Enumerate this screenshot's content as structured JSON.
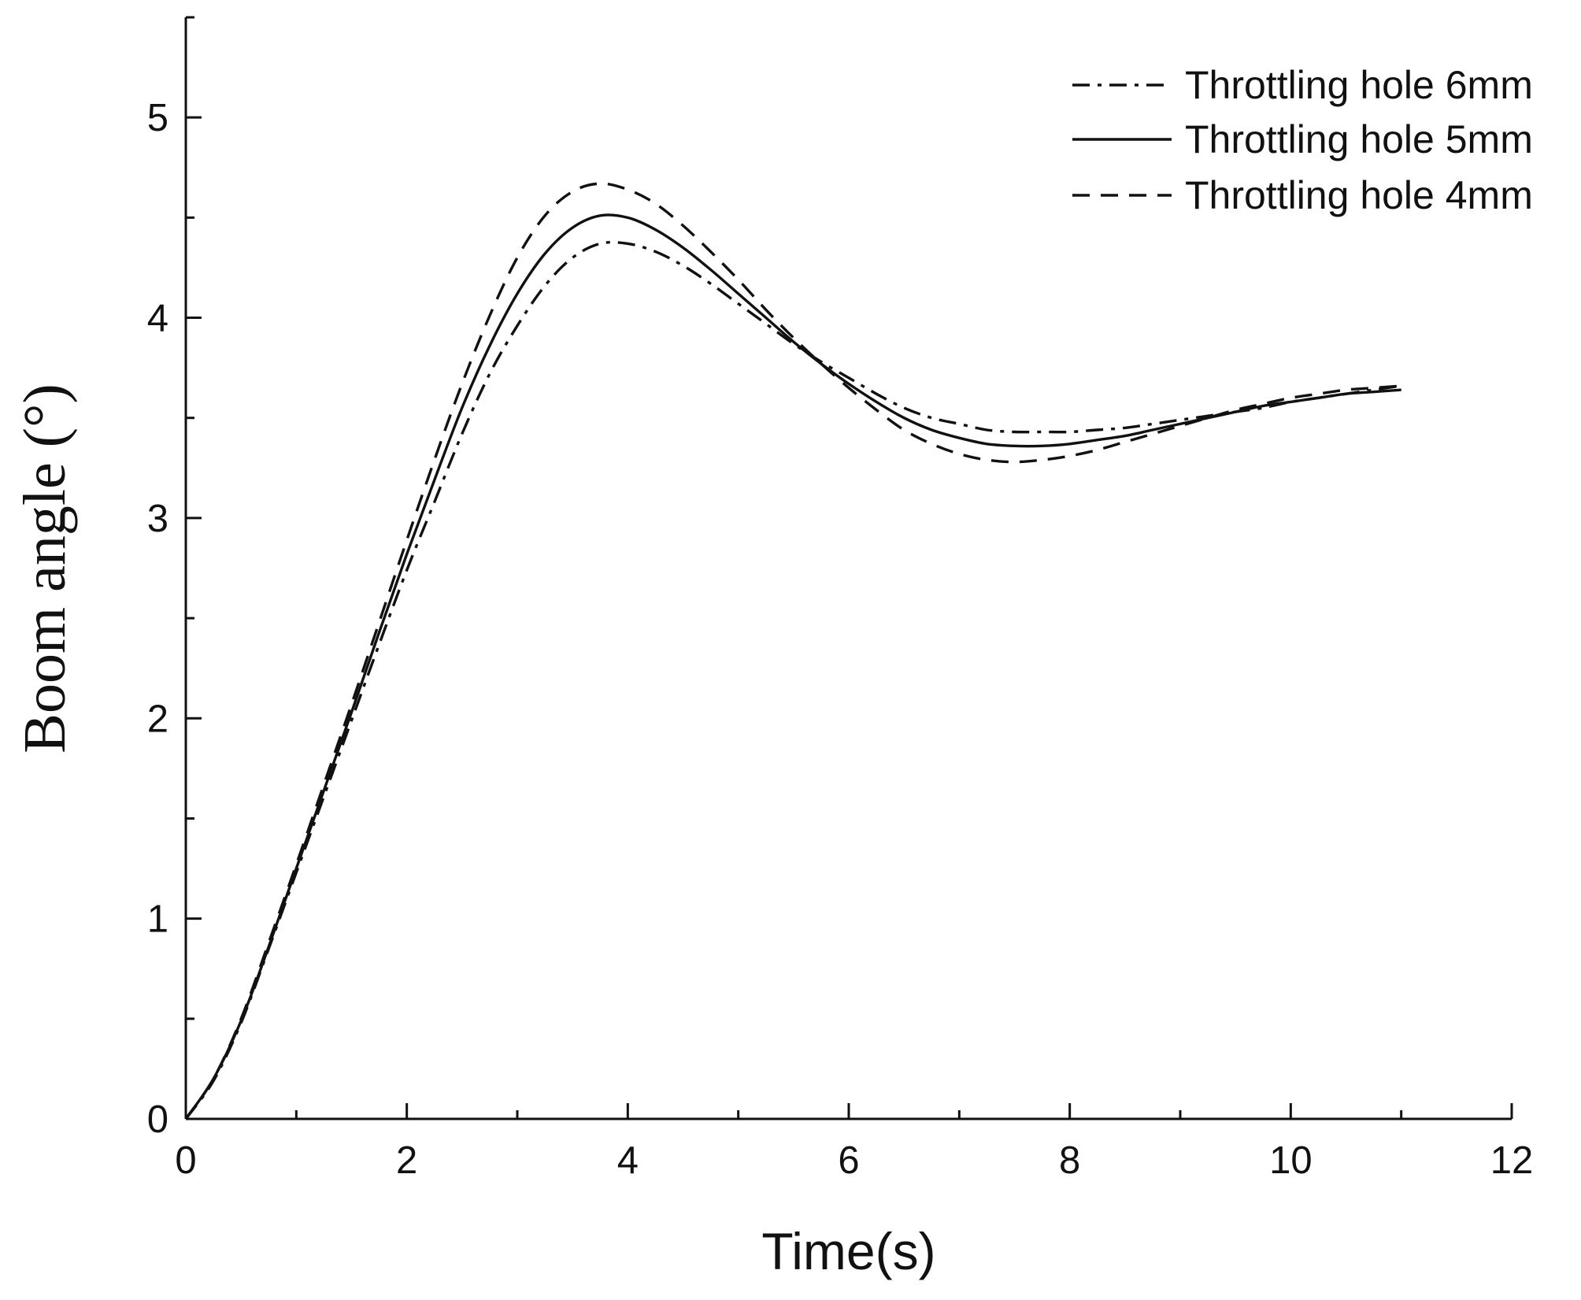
{
  "chart_data": {
    "type": "line",
    "title": "",
    "xlabel": "Time(s)",
    "ylabel": "Boom angle (°)",
    "xlim": [
      0,
      12
    ],
    "ylim": [
      0,
      5.5
    ],
    "xticks": [
      0,
      2,
      4,
      6,
      8,
      10,
      12
    ],
    "yticks": [
      0,
      1,
      2,
      3,
      4,
      5
    ],
    "grid": false,
    "legend_position": "top-right",
    "x": [
      0,
      0.25,
      0.5,
      0.75,
      1.0,
      1.25,
      1.5,
      1.75,
      2.0,
      2.25,
      2.5,
      2.75,
      3.0,
      3.25,
      3.5,
      3.75,
      4.0,
      4.25,
      4.5,
      4.75,
      5.0,
      5.25,
      5.5,
      5.75,
      6.0,
      6.25,
      6.5,
      6.75,
      7.0,
      7.25,
      7.5,
      7.75,
      8.0,
      8.25,
      8.5,
      8.75,
      9.0,
      9.25,
      9.5,
      9.75,
      10.0,
      10.25,
      10.5,
      10.75,
      11.0
    ],
    "series": [
      {
        "name": "Throttling hole 6mm",
        "style": "dashdot",
        "values": [
          0.0,
          0.19,
          0.48,
          0.85,
          1.23,
          1.61,
          1.99,
          2.37,
          2.74,
          3.08,
          3.42,
          3.72,
          3.96,
          4.16,
          4.3,
          4.37,
          4.37,
          4.33,
          4.26,
          4.17,
          4.07,
          3.97,
          3.87,
          3.78,
          3.7,
          3.62,
          3.55,
          3.5,
          3.47,
          3.44,
          3.43,
          3.43,
          3.43,
          3.44,
          3.45,
          3.47,
          3.49,
          3.51,
          3.53,
          3.55,
          3.58,
          3.6,
          3.62,
          3.64,
          3.66
        ]
      },
      {
        "name": "Throttling hole 5mm",
        "style": "solid",
        "values": [
          0.0,
          0.2,
          0.49,
          0.86,
          1.25,
          1.64,
          2.03,
          2.43,
          2.82,
          3.19,
          3.55,
          3.86,
          4.12,
          4.32,
          4.45,
          4.51,
          4.5,
          4.44,
          4.35,
          4.24,
          4.12,
          4.0,
          3.88,
          3.77,
          3.67,
          3.58,
          3.5,
          3.44,
          3.4,
          3.37,
          3.36,
          3.36,
          3.37,
          3.39,
          3.41,
          3.44,
          3.47,
          3.5,
          3.53,
          3.56,
          3.58,
          3.6,
          3.62,
          3.63,
          3.64
        ]
      },
      {
        "name": "Throttling hole 4mm",
        "style": "dashed",
        "values": [
          0.0,
          0.2,
          0.5,
          0.88,
          1.27,
          1.67,
          2.07,
          2.48,
          2.89,
          3.29,
          3.67,
          4.01,
          4.3,
          4.51,
          4.63,
          4.67,
          4.64,
          4.57,
          4.46,
          4.33,
          4.19,
          4.04,
          3.9,
          3.77,
          3.65,
          3.54,
          3.44,
          3.37,
          3.32,
          3.29,
          3.28,
          3.29,
          3.31,
          3.34,
          3.38,
          3.42,
          3.46,
          3.5,
          3.54,
          3.57,
          3.6,
          3.62,
          3.64,
          3.65,
          3.66
        ]
      }
    ]
  }
}
